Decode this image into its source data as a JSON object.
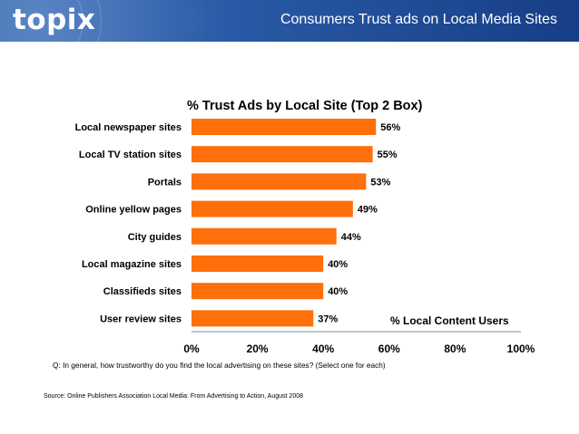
{
  "header": {
    "logo": "topix",
    "title": "Consumers Trust ads on Local Media Sites"
  },
  "chart_data": {
    "type": "bar",
    "orientation": "horizontal",
    "title": "% Trust Ads by Local Site (Top 2 Box)",
    "categories": [
      "Local newspaper sites",
      "Local TV station sites",
      "Portals",
      "Online yellow pages",
      "City guides",
      "Local magazine sites",
      "Classifieds sites",
      "User review sites"
    ],
    "values": [
      56,
      55,
      53,
      49,
      44,
      40,
      40,
      37
    ],
    "value_labels": [
      "56%",
      "55%",
      "53%",
      "49%",
      "44%",
      "40%",
      "40%",
      "37%"
    ],
    "series_label": "% Local Content Users",
    "xlim": [
      0,
      100
    ],
    "x_ticks": [
      "0%",
      "20%",
      "40%",
      "60%",
      "80%",
      "100%"
    ],
    "bar_color": "#ff6f0a",
    "grid": false,
    "question": "Q: In general, how trustworthy do you find the local advertising on these sites? (Select one for each)"
  },
  "footer": {
    "source": "Source: Online Publishers Association Local Media: From Advertising to Action, August 2008"
  }
}
